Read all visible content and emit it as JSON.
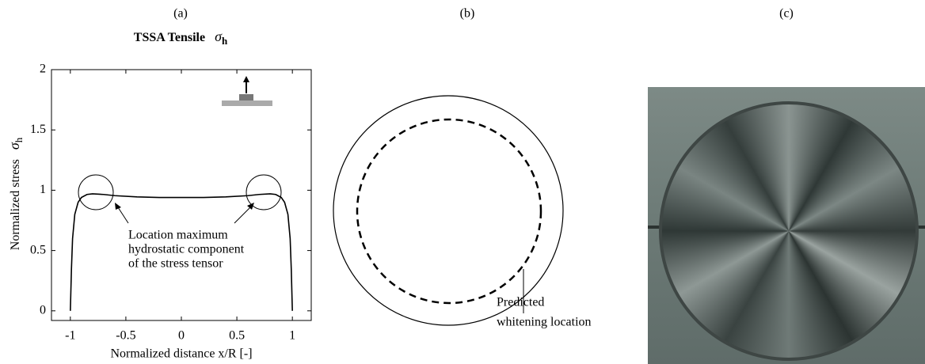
{
  "chart_data": {
    "type": "line",
    "panel_label": "(a)",
    "title": "TSSA Tensile",
    "title_symbol": "σ",
    "title_subscript": "h",
    "xlabel": "Normalized distance x/R [-]",
    "ylabel": "Normalized stress",
    "ylabel_symbol": "σ",
    "ylabel_subscript": "h",
    "x": [
      -1,
      -0.99,
      -0.98,
      -0.96,
      -0.93,
      -0.9,
      -0.85,
      -0.8,
      -0.7,
      -0.6,
      -0.4,
      -0.2,
      0,
      0.2,
      0.4,
      0.6,
      0.7,
      0.8,
      0.85,
      0.9,
      0.93,
      0.96,
      0.98,
      0.99,
      1
    ],
    "values": [
      0,
      0.35,
      0.6,
      0.8,
      0.9,
      0.94,
      0.965,
      0.97,
      0.965,
      0.955,
      0.945,
      0.94,
      0.94,
      0.94,
      0.945,
      0.955,
      0.965,
      0.97,
      0.965,
      0.94,
      0.9,
      0.8,
      0.6,
      0.35,
      0
    ],
    "color": "#000000",
    "xlim": [
      -1.17,
      1.17
    ],
    "xticks": [
      -1,
      -0.5,
      0,
      0.5,
      1
    ],
    "ylim": [
      -0.08,
      2
    ],
    "yticks": [
      0,
      0.5,
      1,
      1.5,
      2
    ],
    "annotation": [
      "Location maximum",
      "hydrostatic component",
      "of the stress tensor"
    ]
  },
  "diagram": {
    "panel_label": "(b)",
    "annotation": [
      "Predicted",
      "whitening location"
    ]
  },
  "photo": {
    "panel_label": "(c)"
  }
}
